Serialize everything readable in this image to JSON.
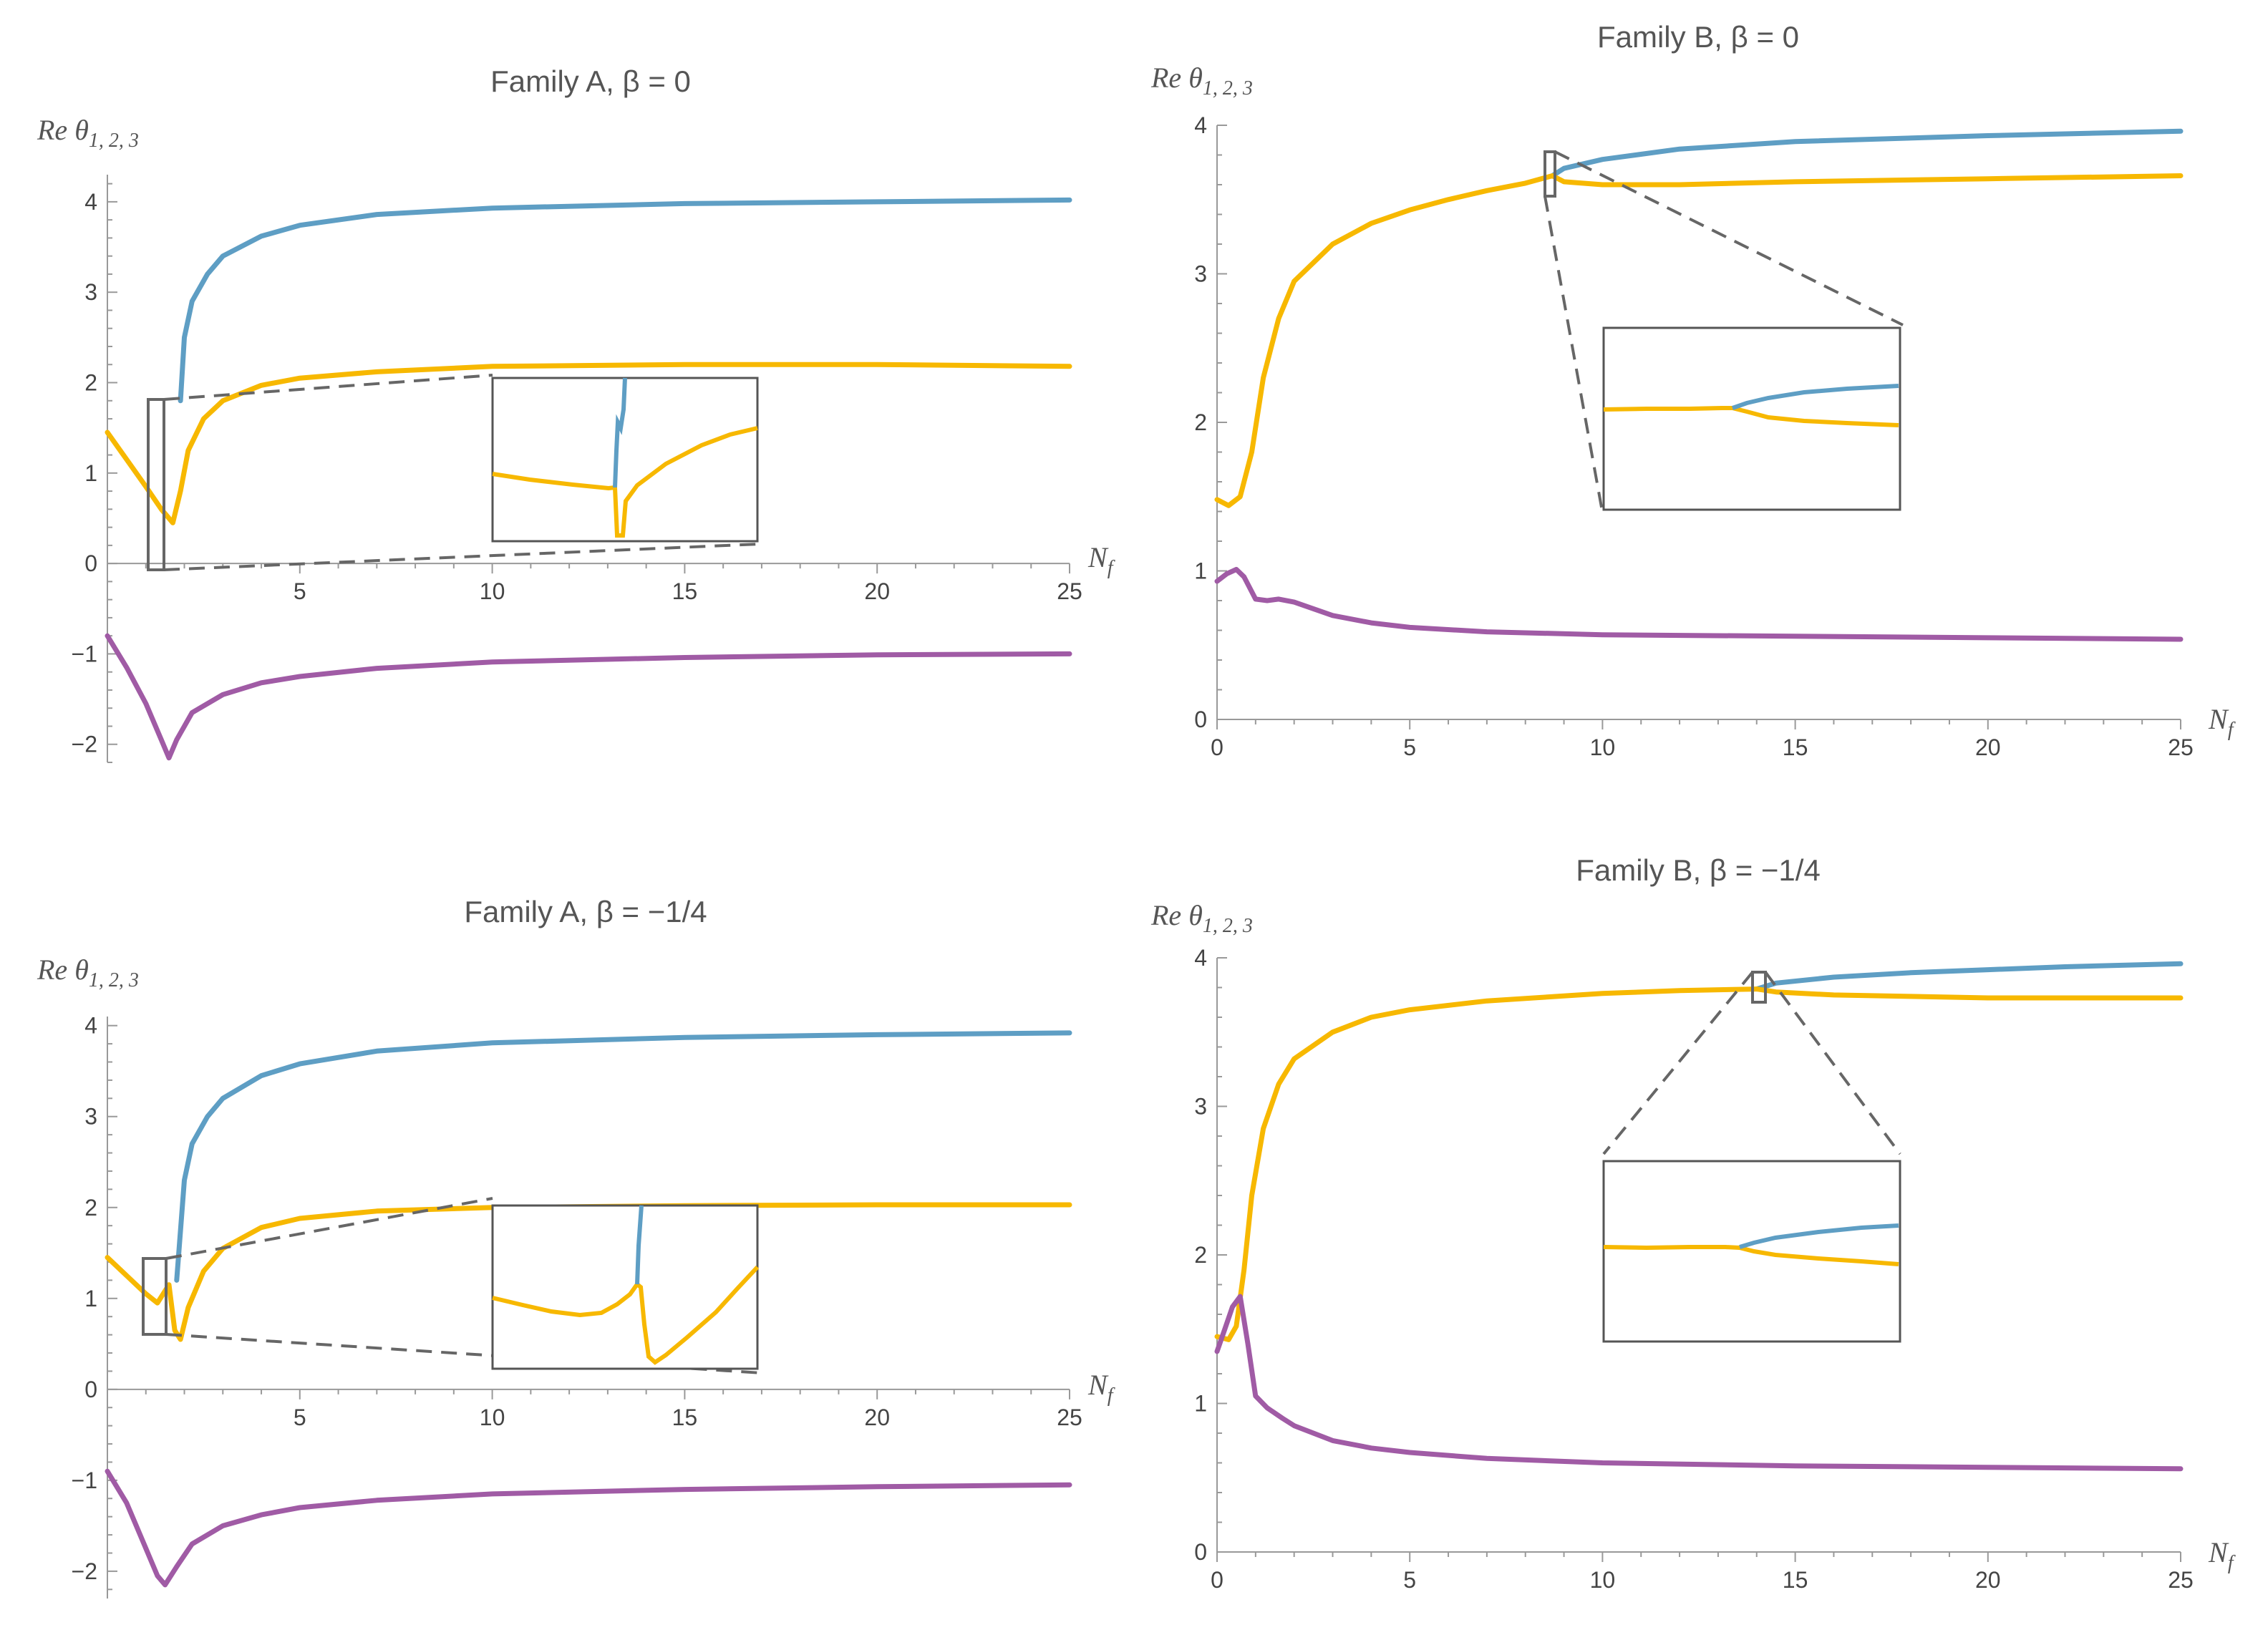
{
  "colors": {
    "series1": "#5E9EC4",
    "series2": "#F7B800",
    "series3": "#A05BA5",
    "axis": "#999999",
    "zoom": "#666666"
  },
  "chart_data": [
    {
      "id": "A0",
      "type": "line",
      "title": "Family A, β = 0",
      "xlabel": "N",
      "xlabel_sub": "f",
      "ylabel": "Re θ",
      "ylabel_sub": "1, 2, 3",
      "xlim": [
        0,
        25
      ],
      "ylim": [
        -2.2,
        4.3
      ],
      "x_ticks": [
        5,
        10,
        15,
        20,
        25
      ],
      "y_ticks": [
        -2,
        -1,
        0,
        1,
        2,
        3,
        4
      ],
      "series": [
        {
          "name": "Re θ1",
          "color": "series1",
          "points": [
            [
              1.9,
              1.8
            ],
            [
              2.0,
              2.5
            ],
            [
              2.2,
              2.9
            ],
            [
              2.6,
              3.2
            ],
            [
              3,
              3.4
            ],
            [
              4,
              3.62
            ],
            [
              5,
              3.74
            ],
            [
              7,
              3.86
            ],
            [
              10,
              3.93
            ],
            [
              15,
              3.98
            ],
            [
              20,
              4.0
            ],
            [
              25,
              4.02
            ]
          ]
        },
        {
          "name": "Re θ2",
          "color": "series2",
          "points": [
            [
              0,
              1.45
            ],
            [
              0.5,
              1.15
            ],
            [
              1.0,
              0.85
            ],
            [
              1.4,
              0.6
            ],
            [
              1.7,
              0.45
            ],
            [
              1.9,
              0.8
            ],
            [
              2.1,
              1.25
            ],
            [
              2.5,
              1.6
            ],
            [
              3,
              1.8
            ],
            [
              4,
              1.97
            ],
            [
              5,
              2.05
            ],
            [
              7,
              2.12
            ],
            [
              10,
              2.18
            ],
            [
              15,
              2.2
            ],
            [
              20,
              2.2
            ],
            [
              25,
              2.18
            ]
          ]
        },
        {
          "name": "Re θ3",
          "color": "series3",
          "points": [
            [
              0,
              -0.8
            ],
            [
              0.5,
              -1.15
            ],
            [
              1.0,
              -1.55
            ],
            [
              1.4,
              -1.95
            ],
            [
              1.6,
              -2.15
            ],
            [
              1.8,
              -1.95
            ],
            [
              2.2,
              -1.65
            ],
            [
              3,
              -1.45
            ],
            [
              4,
              -1.32
            ],
            [
              5,
              -1.25
            ],
            [
              7,
              -1.16
            ],
            [
              10,
              -1.09
            ],
            [
              15,
              -1.04
            ],
            [
              20,
              -1.01
            ],
            [
              25,
              -1.0
            ]
          ]
        }
      ]
    },
    {
      "id": "B0",
      "type": "line",
      "title": "Family B, β = 0",
      "xlabel": "N",
      "xlabel_sub": "f",
      "ylabel": "Re θ",
      "ylabel_sub": "1, 2, 3",
      "xlim": [
        0,
        25
      ],
      "ylim": [
        0,
        4
      ],
      "x_ticks": [
        0,
        5,
        10,
        15,
        20,
        25
      ],
      "y_ticks": [
        0,
        1,
        2,
        3,
        4
      ],
      "series": [
        {
          "name": "Re θ1",
          "color": "series1",
          "points": [
            [
              8.7,
              3.66
            ],
            [
              9,
              3.71
            ],
            [
              10,
              3.77
            ],
            [
              12,
              3.84
            ],
            [
              15,
              3.89
            ],
            [
              20,
              3.93
            ],
            [
              25,
              3.96
            ]
          ]
        },
        {
          "name": "Re θ2",
          "color": "series2",
          "points": [
            [
              0,
              1.48
            ],
            [
              0.3,
              1.44
            ],
            [
              0.6,
              1.5
            ],
            [
              0.9,
              1.8
            ],
            [
              1.2,
              2.3
            ],
            [
              1.6,
              2.7
            ],
            [
              2,
              2.95
            ],
            [
              3,
              3.2
            ],
            [
              4,
              3.34
            ],
            [
              5,
              3.43
            ],
            [
              6,
              3.5
            ],
            [
              7,
              3.56
            ],
            [
              8,
              3.61
            ],
            [
              8.7,
              3.66
            ],
            [
              9,
              3.62
            ],
            [
              10,
              3.6
            ],
            [
              12,
              3.6
            ],
            [
              15,
              3.62
            ],
            [
              20,
              3.64
            ],
            [
              25,
              3.66
            ]
          ]
        },
        {
          "name": "Re θ3",
          "color": "series3",
          "points": [
            [
              0,
              0.93
            ],
            [
              0.25,
              0.98
            ],
            [
              0.5,
              1.01
            ],
            [
              0.7,
              0.96
            ],
            [
              1.0,
              0.81
            ],
            [
              1.3,
              0.8
            ],
            [
              1.6,
              0.81
            ],
            [
              2,
              0.79
            ],
            [
              3,
              0.7
            ],
            [
              4,
              0.65
            ],
            [
              5,
              0.62
            ],
            [
              7,
              0.59
            ],
            [
              10,
              0.57
            ],
            [
              15,
              0.56
            ],
            [
              20,
              0.55
            ],
            [
              25,
              0.54
            ]
          ]
        }
      ]
    },
    {
      "id": "A14",
      "type": "line",
      "title": "Family A, β = −1/4",
      "xlabel": "N",
      "xlabel_sub": "f",
      "ylabel": "Re θ",
      "ylabel_sub": "1, 2, 3",
      "xlim": [
        0,
        25
      ],
      "ylim": [
        -2.3,
        4.1
      ],
      "x_ticks": [
        5,
        10,
        15,
        20,
        25
      ],
      "y_ticks": [
        -2,
        -1,
        0,
        1,
        2,
        3,
        4
      ],
      "series": [
        {
          "name": "Re θ1",
          "color": "series1",
          "points": [
            [
              1.8,
              1.2
            ],
            [
              2.0,
              2.3
            ],
            [
              2.2,
              2.7
            ],
            [
              2.6,
              3.0
            ],
            [
              3,
              3.2
            ],
            [
              4,
              3.45
            ],
            [
              5,
              3.58
            ],
            [
              7,
              3.72
            ],
            [
              10,
              3.81
            ],
            [
              15,
              3.87
            ],
            [
              20,
              3.9
            ],
            [
              25,
              3.92
            ]
          ]
        },
        {
          "name": "Re θ2",
          "color": "series2",
          "points": [
            [
              0,
              1.45
            ],
            [
              0.5,
              1.25
            ],
            [
              1.0,
              1.05
            ],
            [
              1.3,
              0.95
            ],
            [
              1.6,
              1.15
            ],
            [
              1.75,
              0.65
            ],
            [
              1.9,
              0.55
            ],
            [
              2.1,
              0.9
            ],
            [
              2.5,
              1.3
            ],
            [
              3,
              1.55
            ],
            [
              4,
              1.78
            ],
            [
              5,
              1.88
            ],
            [
              7,
              1.96
            ],
            [
              10,
              2.0
            ],
            [
              15,
              2.02
            ],
            [
              20,
              2.03
            ],
            [
              25,
              2.03
            ]
          ]
        },
        {
          "name": "Re θ3",
          "color": "series3",
          "points": [
            [
              0,
              -0.9
            ],
            [
              0.5,
              -1.25
            ],
            [
              1.0,
              -1.75
            ],
            [
              1.3,
              -2.05
            ],
            [
              1.5,
              -2.15
            ],
            [
              1.8,
              -1.95
            ],
            [
              2.2,
              -1.7
            ],
            [
              3,
              -1.5
            ],
            [
              4,
              -1.38
            ],
            [
              5,
              -1.3
            ],
            [
              7,
              -1.22
            ],
            [
              10,
              -1.15
            ],
            [
              15,
              -1.1
            ],
            [
              20,
              -1.07
            ],
            [
              25,
              -1.05
            ]
          ]
        }
      ]
    },
    {
      "id": "B14",
      "type": "line",
      "title": "Family B, β = −1/4",
      "xlabel": "N",
      "xlabel_sub": "f",
      "ylabel": "Re θ",
      "ylabel_sub": "1, 2, 3",
      "xlim": [
        0,
        25
      ],
      "ylim": [
        0,
        4
      ],
      "x_ticks": [
        0,
        5,
        10,
        15,
        20,
        25
      ],
      "y_ticks": [
        0,
        1,
        2,
        3,
        4
      ],
      "series": [
        {
          "name": "Re θ1",
          "color": "series1",
          "points": [
            [
              14,
              3.79
            ],
            [
              14.5,
              3.83
            ],
            [
              16,
              3.87
            ],
            [
              18,
              3.9
            ],
            [
              20,
              3.92
            ],
            [
              22,
              3.94
            ],
            [
              25,
              3.96
            ]
          ]
        },
        {
          "name": "Re θ2",
          "color": "series2",
          "points": [
            [
              0,
              1.45
            ],
            [
              0.3,
              1.43
            ],
            [
              0.5,
              1.52
            ],
            [
              0.7,
              1.9
            ],
            [
              0.9,
              2.4
            ],
            [
              1.2,
              2.85
            ],
            [
              1.6,
              3.15
            ],
            [
              2,
              3.32
            ],
            [
              3,
              3.5
            ],
            [
              4,
              3.6
            ],
            [
              5,
              3.65
            ],
            [
              7,
              3.71
            ],
            [
              10,
              3.76
            ],
            [
              12,
              3.78
            ],
            [
              14,
              3.79
            ],
            [
              14.5,
              3.77
            ],
            [
              16,
              3.75
            ],
            [
              18,
              3.74
            ],
            [
              20,
              3.73
            ],
            [
              25,
              3.73
            ]
          ]
        },
        {
          "name": "Re θ3",
          "color": "series3",
          "points": [
            [
              0,
              1.35
            ],
            [
              0.2,
              1.5
            ],
            [
              0.4,
              1.65
            ],
            [
              0.6,
              1.72
            ],
            [
              0.8,
              1.4
            ],
            [
              1.0,
              1.05
            ],
            [
              1.3,
              0.97
            ],
            [
              1.7,
              0.9
            ],
            [
              2,
              0.85
            ],
            [
              3,
              0.75
            ],
            [
              4,
              0.7
            ],
            [
              5,
              0.67
            ],
            [
              7,
              0.63
            ],
            [
              10,
              0.6
            ],
            [
              15,
              0.58
            ],
            [
              20,
              0.57
            ],
            [
              25,
              0.56
            ]
          ]
        }
      ]
    }
  ]
}
